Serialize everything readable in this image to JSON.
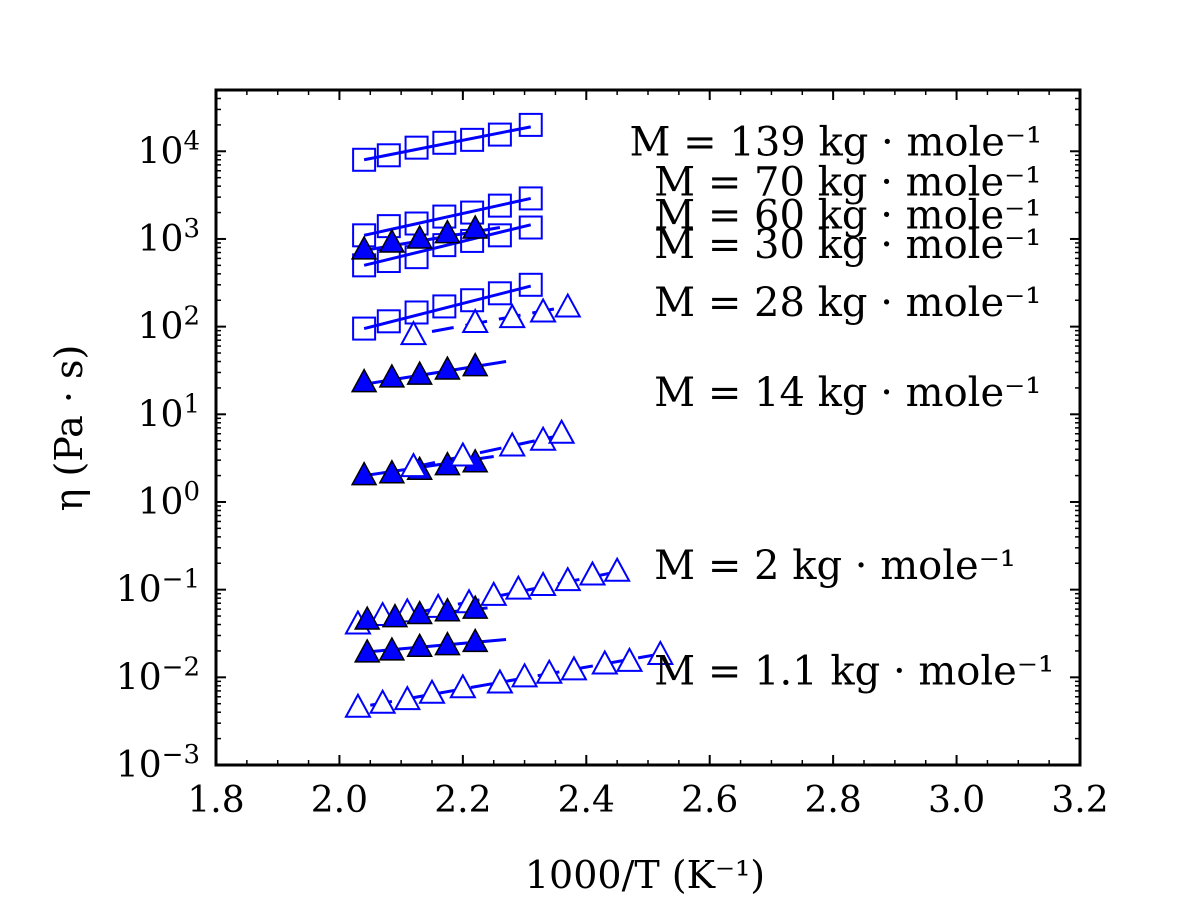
{
  "chart_data": {
    "type": "scatter",
    "title": "",
    "xlabel": "1000/T (K⁻¹)",
    "ylabel": "η (Pa · s)",
    "x_range": [
      1.8,
      3.2
    ],
    "y_range": [
      0.001,
      50000
    ],
    "y_scale": "log",
    "grid": false,
    "x_ticks": [
      1.8,
      2.0,
      2.2,
      2.4,
      2.6,
      2.8,
      3.0,
      3.2
    ],
    "x_tick_labels": [
      "1.8",
      "2.0",
      "2.2",
      "2.4",
      "2.6",
      "2.8",
      "3.0",
      "3.2"
    ],
    "y_ticks": [
      {
        "value": 0.001,
        "base": "10",
        "exp": "−3"
      },
      {
        "value": 0.01,
        "base": "10",
        "exp": "−2"
      },
      {
        "value": 0.1,
        "base": "10",
        "exp": "−1"
      },
      {
        "value": 1,
        "base": "10",
        "exp": "0"
      },
      {
        "value": 10,
        "base": "10",
        "exp": "1"
      },
      {
        "value": 100,
        "base": "10",
        "exp": "2"
      },
      {
        "value": 1000,
        "base": "10",
        "exp": "3"
      },
      {
        "value": 10000,
        "base": "10",
        "exp": "4"
      }
    ],
    "annotations": [
      {
        "text": "M = 139 kg · mole⁻¹",
        "x": 2.47,
        "y": 13000
      },
      {
        "text": "M = 70 kg · mole⁻¹",
        "x": 2.51,
        "y": 4500
      },
      {
        "text": "M = 60 kg · mole⁻¹",
        "x": 2.51,
        "y": 1900
      },
      {
        "text": "M = 30 kg · mole⁻¹",
        "x": 2.51,
        "y": 880
      },
      {
        "text": "M = 28 kg · mole⁻¹",
        "x": 2.51,
        "y": 190
      },
      {
        "text": "M = 14 kg · mole⁻¹",
        "x": 2.51,
        "y": 18
      },
      {
        "text": "M = 2 kg · mole⁻¹",
        "x": 2.51,
        "y": 0.19
      },
      {
        "text": "M = 1.1 kg · mole⁻¹",
        "x": 2.51,
        "y": 0.012
      }
    ],
    "series": [
      {
        "marker": "square",
        "filled": false,
        "line": "solid",
        "x": [
          2.04,
          2.08,
          2.125,
          2.17,
          2.215,
          2.26,
          2.31
        ],
        "y": [
          8000,
          9000,
          11000,
          12500,
          13500,
          15500,
          20000
        ],
        "fit": {
          "x": [
            2.04,
            2.31
          ],
          "y": [
            8000,
            19000
          ]
        }
      },
      {
        "marker": "square",
        "filled": false,
        "line": "solid",
        "x": [
          2.04,
          2.08,
          2.125,
          2.17,
          2.215,
          2.26,
          2.31
        ],
        "y": [
          1100,
          1400,
          1500,
          1800,
          2000,
          2400,
          2900
        ],
        "fit": {
          "x": [
            2.04,
            2.31
          ],
          "y": [
            1100,
            2900
          ]
        }
      },
      {
        "marker": "square",
        "filled": false,
        "line": "solid",
        "x": [
          2.04,
          2.08,
          2.125,
          2.17,
          2.215,
          2.26,
          2.31
        ],
        "y": [
          500,
          560,
          620,
          850,
          950,
          1100,
          1350
        ],
        "fit": {
          "x": [
            2.04,
            2.31
          ],
          "y": [
            500,
            1450
          ]
        }
      },
      {
        "marker": "triangle",
        "filled": true,
        "line": "solid",
        "x": [
          2.04,
          2.085,
          2.13,
          2.175,
          2.22
        ],
        "y": [
          750,
          900,
          1000,
          1150,
          1300
        ],
        "fit": {
          "x": [
            2.04,
            2.26
          ],
          "y": [
            740,
            1350
          ]
        }
      },
      {
        "marker": "square",
        "filled": false,
        "line": "solid",
        "x": [
          2.04,
          2.08,
          2.125,
          2.17,
          2.215,
          2.26,
          2.31
        ],
        "y": [
          95,
          115,
          145,
          170,
          200,
          240,
          300
        ],
        "fit": {
          "x": [
            2.04,
            2.31
          ],
          "y": [
            95,
            290
          ]
        }
      },
      {
        "marker": "triangle",
        "filled": false,
        "line": "dashed",
        "x": [
          2.12,
          2.22,
          2.28,
          2.33,
          2.37
        ],
        "y": [
          80,
          110,
          125,
          145,
          165
        ],
        "fit": {
          "x": [
            2.15,
            2.37
          ],
          "y": [
            88,
            170
          ]
        }
      },
      {
        "marker": "triangle",
        "filled": true,
        "line": "solid",
        "x": [
          2.04,
          2.085,
          2.13,
          2.175,
          2.22
        ],
        "y": [
          23,
          26,
          28,
          32,
          35
        ],
        "fit": {
          "x": [
            2.04,
            2.27
          ],
          "y": [
            22,
            40
          ]
        }
      },
      {
        "marker": "triangle",
        "filled": true,
        "line": "solid",
        "x": [
          2.04,
          2.085,
          2.13,
          2.175,
          2.22
        ],
        "y": [
          2.0,
          2.1,
          2.3,
          2.6,
          2.8
        ],
        "fit": {
          "x": [
            2.04,
            2.25
          ],
          "y": [
            2.0,
            3.3
          ]
        }
      },
      {
        "marker": "triangle",
        "filled": false,
        "line": "dashed",
        "x": [
          2.12,
          2.2,
          2.28,
          2.33,
          2.36
        ],
        "y": [
          2.5,
          3.3,
          4.3,
          5.0,
          6.0
        ],
        "fit": {
          "x": [
            2.12,
            2.36
          ],
          "y": [
            2.5,
            5.8
          ]
        }
      },
      {
        "marker": "triangle",
        "filled": false,
        "line": "dashed",
        "x": [
          2.03,
          2.07,
          2.11,
          2.16,
          2.21,
          2.25,
          2.29,
          2.33,
          2.37,
          2.41,
          2.45
        ],
        "y": [
          0.04,
          0.05,
          0.055,
          0.062,
          0.07,
          0.085,
          0.1,
          0.11,
          0.125,
          0.145,
          0.16
        ],
        "fit": {
          "x": [
            2.03,
            2.45
          ],
          "y": [
            0.04,
            0.16
          ]
        }
      },
      {
        "marker": "triangle",
        "filled": true,
        "line": "solid",
        "x": [
          2.045,
          2.09,
          2.13,
          2.175,
          2.22
        ],
        "y": [
          0.045,
          0.048,
          0.052,
          0.056,
          0.06
        ],
        "fit": {
          "x": [
            2.045,
            2.24
          ],
          "y": [
            0.044,
            0.062
          ]
        }
      },
      {
        "marker": "triangle",
        "filled": true,
        "line": "solid",
        "x": [
          2.045,
          2.085,
          2.13,
          2.175,
          2.22
        ],
        "y": [
          0.019,
          0.02,
          0.022,
          0.023,
          0.025
        ],
        "fit": {
          "x": [
            2.045,
            2.27
          ],
          "y": [
            0.0195,
            0.027
          ]
        }
      },
      {
        "marker": "triangle",
        "filled": false,
        "line": "dashed",
        "x": [
          2.03,
          2.07,
          2.11,
          2.15,
          2.2,
          2.26,
          2.3,
          2.34,
          2.38,
          2.43,
          2.47,
          2.52
        ],
        "y": [
          0.0045,
          0.005,
          0.0055,
          0.0065,
          0.0075,
          0.0085,
          0.01,
          0.011,
          0.012,
          0.014,
          0.015,
          0.018
        ],
        "fit": {
          "x": [
            2.05,
            2.53
          ],
          "y": [
            0.0048,
            0.019
          ]
        }
      }
    ]
  }
}
